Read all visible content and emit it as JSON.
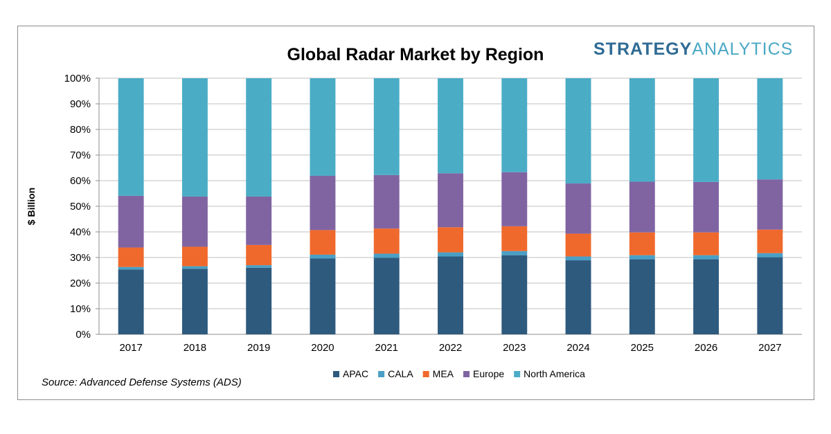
{
  "brand": {
    "part1": "STRATEGY",
    "part2": "ANALYTICS"
  },
  "source": "Source: Advanced Defense Systems (ADS)",
  "chart_data": {
    "type": "bar",
    "stacked": true,
    "title": "Global Radar Market by Region",
    "xlabel": "",
    "ylabel": "$ Billion",
    "ylim": [
      0,
      100
    ],
    "y_ticks": [
      "0%",
      "10%",
      "20%",
      "30%",
      "40%",
      "50%",
      "60%",
      "70%",
      "80%",
      "90%",
      "100%"
    ],
    "grid": true,
    "legend_position": "bottom",
    "categories": [
      "2017",
      "2018",
      "2019",
      "2020",
      "2021",
      "2022",
      "2023",
      "2024",
      "2025",
      "2026",
      "2027"
    ],
    "series": [
      {
        "name": "APAC",
        "color": "#2e5a7e",
        "values": [
          25.3,
          25.6,
          26.0,
          29.6,
          29.9,
          30.4,
          30.9,
          28.9,
          29.3,
          29.3,
          30.1
        ]
      },
      {
        "name": "CALA",
        "color": "#4a9fc5",
        "values": [
          1.0,
          1.0,
          1.0,
          1.5,
          1.6,
          1.6,
          1.6,
          1.5,
          1.6,
          1.6,
          1.6
        ]
      },
      {
        "name": "MEA",
        "color": "#f0692c",
        "values": [
          7.6,
          7.6,
          7.9,
          9.6,
          9.8,
          9.8,
          9.7,
          8.9,
          8.9,
          8.9,
          9.2
        ]
      },
      {
        "name": "Europe",
        "color": "#8064a2",
        "values": [
          20.2,
          19.6,
          18.9,
          21.2,
          20.9,
          21.1,
          21.1,
          19.6,
          19.8,
          19.7,
          19.6
        ]
      },
      {
        "name": "North America",
        "color": "#4bacc6",
        "values": [
          45.9,
          46.2,
          46.2,
          38.1,
          37.8,
          37.1,
          36.7,
          41.1,
          40.4,
          40.5,
          39.5
        ]
      }
    ]
  }
}
